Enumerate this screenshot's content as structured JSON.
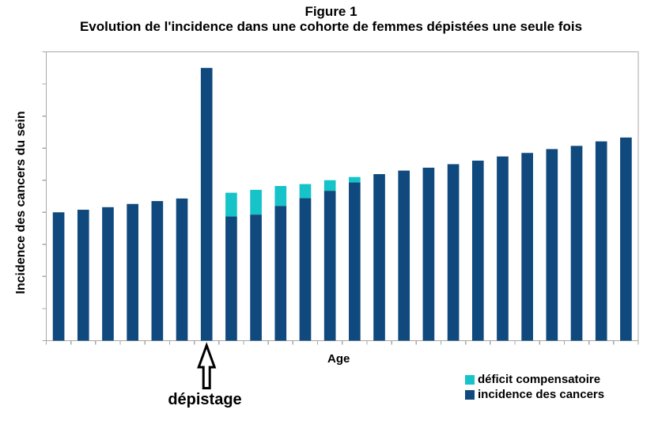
{
  "title": {
    "line1": "Figure 1",
    "line2": "Evolution de l'incidence dans une cohorte de femmes dépistées une seule fois"
  },
  "axes": {
    "y_label": "Incidence des cancers du sein",
    "x_label": "Age"
  },
  "annotation": {
    "label": "dépistage"
  },
  "legend": [
    {
      "label": "déficit compensatoire",
      "color": "#15C3C9"
    },
    {
      "label": "incidence des cancers",
      "color": "#10497D"
    }
  ],
  "colors": {
    "incidence": "#10497D",
    "deficit": "#15C3C9",
    "axis": "#A8A8A8",
    "arrow_outline": "#000000",
    "arrow_fill": "#FFFFFF"
  },
  "chart_data": {
    "type": "bar",
    "stacked": true,
    "orientation": "vertical",
    "n_bars": 24,
    "title": "Figure 1",
    "subtitle": "Evolution de l'incidence dans une cohorte de femmes dépistées une seule fois",
    "xlabel": "Age",
    "ylabel": "Incidence des cancers du sein",
    "units": "relative (axes show tick marks but no numeric labels)",
    "ylim": [
      0,
      9
    ],
    "y_ticks_count": 10,
    "x_ticks_count": 25,
    "grid": false,
    "tick_labels_visible": false,
    "legend_position": "bottom-right",
    "series": [
      {
        "name": "incidence des cancers",
        "color": "#10497D",
        "values": [
          4.0,
          4.08,
          4.16,
          4.26,
          4.35,
          4.43,
          8.5,
          3.87,
          3.93,
          4.2,
          4.44,
          4.67,
          4.93,
          5.19,
          5.3,
          5.39,
          5.5,
          5.61,
          5.74,
          5.85,
          5.97,
          6.07,
          6.21,
          6.33
        ]
      },
      {
        "name": "déficit compensatoire",
        "color": "#15C3C9",
        "values": [
          0,
          0,
          0,
          0,
          0,
          0,
          0,
          0.74,
          0.77,
          0.62,
          0.44,
          0.33,
          0.17,
          0,
          0,
          0,
          0,
          0,
          0,
          0,
          0,
          0,
          0,
          0
        ]
      }
    ],
    "annotation": {
      "text": "dépistage",
      "bar_index": 7,
      "meaning": "arrow points at the screening-year bar"
    }
  }
}
